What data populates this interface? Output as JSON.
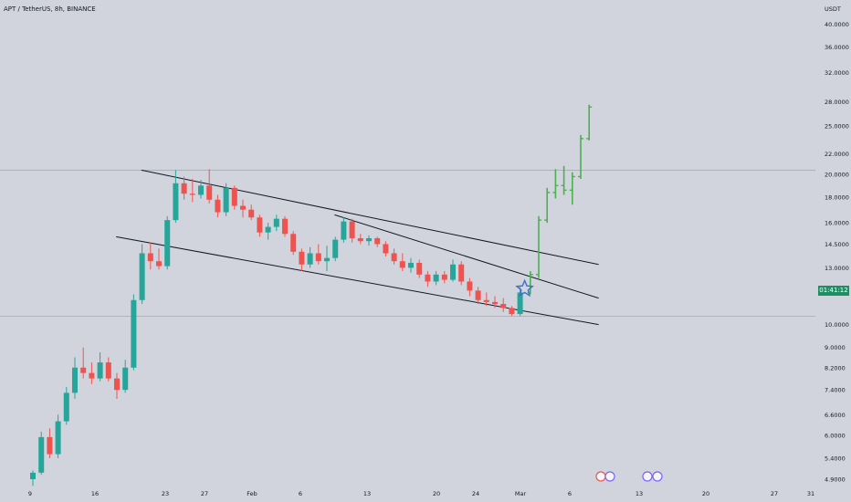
{
  "chart_title": "APT / TetherUS, 8h, BINANCE",
  "axis_unit": "USDT",
  "price_tag": "01:41:12",
  "y_ticks": [
    "40.0000",
    "36.0000",
    "32.0000",
    "28.0000",
    "25.0000",
    "22.0000",
    "20.0000",
    "18.0000",
    "16.0000",
    "14.5000",
    "13.0000",
    "10.0000",
    "9.0000",
    "8.2000",
    "7.4000",
    "6.6000",
    "6.0000",
    "5.4000",
    "4.9000"
  ],
  "x_ticks": [
    "9",
    "16",
    "23",
    "27",
    "Feb",
    "6",
    "13",
    "20",
    "24",
    "Mar",
    "6",
    "13",
    "20",
    "27",
    "31"
  ],
  "chart_data": {
    "type": "candlestick",
    "title": "APT / TetherUS, 8h, BINANCE",
    "ylabel": "USDT",
    "y_scale": "log",
    "ylim": [
      4.6,
      42
    ],
    "candles": [
      {
        "date": "Jan 9",
        "o": 4.9,
        "h": 5.1,
        "l": 4.75,
        "c": 5.05,
        "d": "up"
      },
      {
        "date": "Jan 10",
        "o": 5.05,
        "h": 6.1,
        "l": 5.0,
        "c": 5.95,
        "d": "up"
      },
      {
        "date": "Jan 11",
        "o": 5.95,
        "h": 6.2,
        "l": 5.4,
        "c": 5.5,
        "d": "down"
      },
      {
        "date": "Jan 12",
        "o": 5.5,
        "h": 6.6,
        "l": 5.4,
        "c": 6.4,
        "d": "up"
      },
      {
        "date": "Jan 13",
        "o": 6.4,
        "h": 7.5,
        "l": 6.3,
        "c": 7.3,
        "d": "up"
      },
      {
        "date": "Jan 14",
        "o": 7.3,
        "h": 8.6,
        "l": 7.1,
        "c": 8.2,
        "d": "up"
      },
      {
        "date": "Jan 15",
        "o": 8.2,
        "h": 9.0,
        "l": 7.8,
        "c": 8.0,
        "d": "down"
      },
      {
        "date": "Jan 16",
        "o": 8.0,
        "h": 8.4,
        "l": 7.6,
        "c": 7.8,
        "d": "down"
      },
      {
        "date": "Jan 17",
        "o": 7.8,
        "h": 8.8,
        "l": 7.7,
        "c": 8.4,
        "d": "up"
      },
      {
        "date": "Jan 18",
        "o": 8.4,
        "h": 8.6,
        "l": 7.7,
        "c": 7.8,
        "d": "down"
      },
      {
        "date": "Jan 19",
        "o": 7.8,
        "h": 8.0,
        "l": 7.1,
        "c": 7.4,
        "d": "down"
      },
      {
        "date": "Jan 20",
        "o": 7.4,
        "h": 8.5,
        "l": 7.3,
        "c": 8.2,
        "d": "up"
      },
      {
        "date": "Jan 21",
        "o": 8.2,
        "h": 11.5,
        "l": 8.1,
        "c": 11.2,
        "d": "up"
      },
      {
        "date": "Jan 22",
        "o": 11.2,
        "h": 14.5,
        "l": 11.0,
        "c": 13.9,
        "d": "up"
      },
      {
        "date": "Jan 23",
        "o": 13.9,
        "h": 14.6,
        "l": 12.9,
        "c": 13.4,
        "d": "down"
      },
      {
        "date": "Jan 24",
        "o": 13.4,
        "h": 14.2,
        "l": 12.9,
        "c": 13.1,
        "d": "down"
      },
      {
        "date": "Jan 25",
        "o": 13.1,
        "h": 16.5,
        "l": 12.9,
        "c": 16.2,
        "d": "up"
      },
      {
        "date": "Jan 26",
        "o": 16.2,
        "h": 20.4,
        "l": 16.0,
        "c": 19.2,
        "d": "up"
      },
      {
        "date": "Jan 27",
        "o": 19.2,
        "h": 19.8,
        "l": 17.8,
        "c": 18.3,
        "d": "down"
      },
      {
        "date": "Jan 28",
        "o": 18.3,
        "h": 19.6,
        "l": 17.6,
        "c": 18.2,
        "d": "down"
      },
      {
        "date": "Jan 29",
        "o": 18.2,
        "h": 19.5,
        "l": 17.9,
        "c": 19.0,
        "d": "up"
      },
      {
        "date": "Jan 30",
        "o": 19.0,
        "h": 20.5,
        "l": 17.5,
        "c": 17.8,
        "d": "down"
      },
      {
        "date": "Jan 31",
        "o": 17.8,
        "h": 18.2,
        "l": 16.4,
        "c": 16.8,
        "d": "down"
      },
      {
        "date": "Feb 1",
        "o": 16.8,
        "h": 19.2,
        "l": 16.5,
        "c": 18.8,
        "d": "up"
      },
      {
        "date": "Feb 2",
        "o": 18.8,
        "h": 19.0,
        "l": 17.0,
        "c": 17.3,
        "d": "down"
      },
      {
        "date": "Feb 3",
        "o": 17.3,
        "h": 17.8,
        "l": 16.4,
        "c": 17.0,
        "d": "down"
      },
      {
        "date": "Feb 4",
        "o": 17.0,
        "h": 17.4,
        "l": 16.2,
        "c": 16.4,
        "d": "down"
      },
      {
        "date": "Feb 5",
        "o": 16.4,
        "h": 16.6,
        "l": 15.0,
        "c": 15.3,
        "d": "down"
      },
      {
        "date": "Feb 6",
        "o": 15.3,
        "h": 16.0,
        "l": 14.8,
        "c": 15.7,
        "d": "up"
      },
      {
        "date": "Feb 7",
        "o": 15.7,
        "h": 16.6,
        "l": 15.4,
        "c": 16.3,
        "d": "up"
      },
      {
        "date": "Feb 8",
        "o": 16.3,
        "h": 16.5,
        "l": 15.0,
        "c": 15.2,
        "d": "down"
      },
      {
        "date": "Feb 9",
        "o": 15.2,
        "h": 15.4,
        "l": 13.8,
        "c": 14.0,
        "d": "down"
      },
      {
        "date": "Feb 10",
        "o": 14.0,
        "h": 14.2,
        "l": 12.8,
        "c": 13.2,
        "d": "down"
      },
      {
        "date": "Feb 11",
        "o": 13.2,
        "h": 14.3,
        "l": 13.0,
        "c": 13.9,
        "d": "up"
      },
      {
        "date": "Feb 12",
        "o": 13.9,
        "h": 14.5,
        "l": 13.2,
        "c": 13.4,
        "d": "down"
      },
      {
        "date": "Feb 13",
        "o": 13.4,
        "h": 14.4,
        "l": 12.8,
        "c": 13.6,
        "d": "up"
      },
      {
        "date": "Feb 14",
        "o": 13.6,
        "h": 15.0,
        "l": 13.4,
        "c": 14.8,
        "d": "up"
      },
      {
        "date": "Feb 15",
        "o": 14.8,
        "h": 16.4,
        "l": 14.6,
        "c": 16.1,
        "d": "up"
      },
      {
        "date": "Feb 16",
        "o": 16.1,
        "h": 16.3,
        "l": 14.6,
        "c": 14.9,
        "d": "down"
      },
      {
        "date": "Feb 17",
        "o": 14.9,
        "h": 15.2,
        "l": 14.5,
        "c": 14.7,
        "d": "down"
      },
      {
        "date": "Feb 18",
        "o": 14.7,
        "h": 15.1,
        "l": 14.4,
        "c": 14.9,
        "d": "up"
      },
      {
        "date": "Feb 19",
        "o": 14.9,
        "h": 15.0,
        "l": 14.3,
        "c": 14.5,
        "d": "down"
      },
      {
        "date": "Feb 20",
        "o": 14.5,
        "h": 14.7,
        "l": 13.7,
        "c": 13.9,
        "d": "down"
      },
      {
        "date": "Feb 21",
        "o": 13.9,
        "h": 14.2,
        "l": 13.2,
        "c": 13.4,
        "d": "down"
      },
      {
        "date": "Feb 22",
        "o": 13.4,
        "h": 13.9,
        "l": 12.8,
        "c": 13.0,
        "d": "down"
      },
      {
        "date": "Feb 23",
        "o": 13.0,
        "h": 13.6,
        "l": 12.7,
        "c": 13.3,
        "d": "up"
      },
      {
        "date": "Feb 24",
        "o": 13.3,
        "h": 13.5,
        "l": 12.4,
        "c": 12.6,
        "d": "down"
      },
      {
        "date": "Feb 25",
        "o": 12.6,
        "h": 12.8,
        "l": 11.9,
        "c": 12.2,
        "d": "down"
      },
      {
        "date": "Feb 26",
        "o": 12.2,
        "h": 12.8,
        "l": 12.0,
        "c": 12.6,
        "d": "up"
      },
      {
        "date": "Feb 27",
        "o": 12.6,
        "h": 12.8,
        "l": 12.1,
        "c": 12.3,
        "d": "down"
      },
      {
        "date": "Feb 28",
        "o": 12.3,
        "h": 13.5,
        "l": 12.2,
        "c": 13.2,
        "d": "up"
      },
      {
        "date": "Mar 1",
        "o": 13.2,
        "h": 13.4,
        "l": 12.0,
        "c": 12.2,
        "d": "down"
      },
      {
        "date": "Mar 2",
        "o": 12.2,
        "h": 12.4,
        "l": 11.4,
        "c": 11.7,
        "d": "down"
      },
      {
        "date": "Mar 3",
        "o": 11.7,
        "h": 11.9,
        "l": 11.0,
        "c": 11.2,
        "d": "down"
      },
      {
        "date": "Mar 4",
        "o": 11.2,
        "h": 11.6,
        "l": 10.9,
        "c": 11.1,
        "d": "down"
      },
      {
        "date": "Mar 5",
        "o": 11.1,
        "h": 11.4,
        "l": 10.8,
        "c": 11.0,
        "d": "down"
      },
      {
        "date": "Mar 6",
        "o": 11.0,
        "h": 11.3,
        "l": 10.6,
        "c": 10.8,
        "d": "down"
      },
      {
        "date": "Mar 7",
        "o": 10.8,
        "h": 10.9,
        "l": 10.4,
        "c": 10.5,
        "d": "down"
      },
      {
        "date": "Mar 8",
        "o": 10.5,
        "h": 11.9,
        "l": 10.4,
        "c": 11.6,
        "d": "up"
      }
    ],
    "projection": [
      {
        "date": "Mar 9",
        "o": 11.6,
        "h": 12.8,
        "l": 11.5,
        "c": 12.6
      },
      {
        "date": "Mar 10",
        "o": 12.6,
        "h": 16.5,
        "l": 12.4,
        "c": 16.2
      },
      {
        "date": "Mar 11",
        "o": 16.2,
        "h": 18.8,
        "l": 16.0,
        "c": 18.4
      },
      {
        "date": "Mar 12",
        "o": 18.4,
        "h": 20.5,
        "l": 17.9,
        "c": 19.0
      },
      {
        "date": "Mar 13",
        "o": 19.0,
        "h": 20.8,
        "l": 18.2,
        "c": 18.6
      },
      {
        "date": "Mar 14",
        "o": 18.6,
        "h": 20.2,
        "l": 17.4,
        "c": 19.8
      },
      {
        "date": "Mar 15",
        "o": 19.8,
        "h": 24.0,
        "l": 19.6,
        "c": 23.6
      },
      {
        "date": "Mar 16",
        "o": 23.6,
        "h": 27.6,
        "l": 23.4,
        "c": 27.3
      }
    ],
    "trendlines": [
      {
        "from": {
          "date": "Jan 23",
          "price": 20.4
        },
        "to": {
          "date": "Mar 13",
          "price": 13.2
        }
      },
      {
        "from": {
          "date": "Jan 20",
          "price": 15.0
        },
        "to": {
          "date": "Mar 13",
          "price": 10.0
        }
      },
      {
        "from": {
          "date": "Feb 15",
          "price": 16.6
        },
        "to": {
          "date": "Mar 13",
          "price": 11.3
        }
      }
    ],
    "horizontal_levels": [
      20.4,
      10.4
    ],
    "legend": "none",
    "grid": false
  }
}
